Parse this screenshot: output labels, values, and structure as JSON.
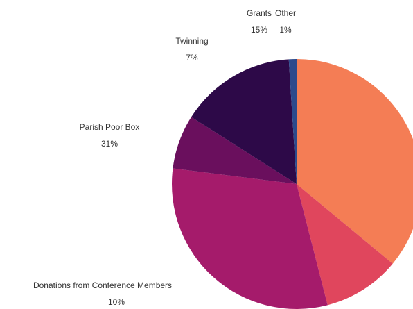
{
  "chart_data": {
    "type": "pie",
    "categories": [
      null,
      "Donations from Conference Members",
      "Parish Poor Box",
      "Twinning",
      "Grants",
      "Other"
    ],
    "values": [
      36,
      10,
      31,
      7,
      15,
      1
    ],
    "value_labels": [
      null,
      "10%",
      "31%",
      "7%",
      "15%",
      "1%"
    ],
    "colors": [
      "#f47d55",
      "#e0465d",
      "#a51b6b",
      "#6a0f5d",
      "#2d0948",
      "#2c4a8c"
    ]
  }
}
